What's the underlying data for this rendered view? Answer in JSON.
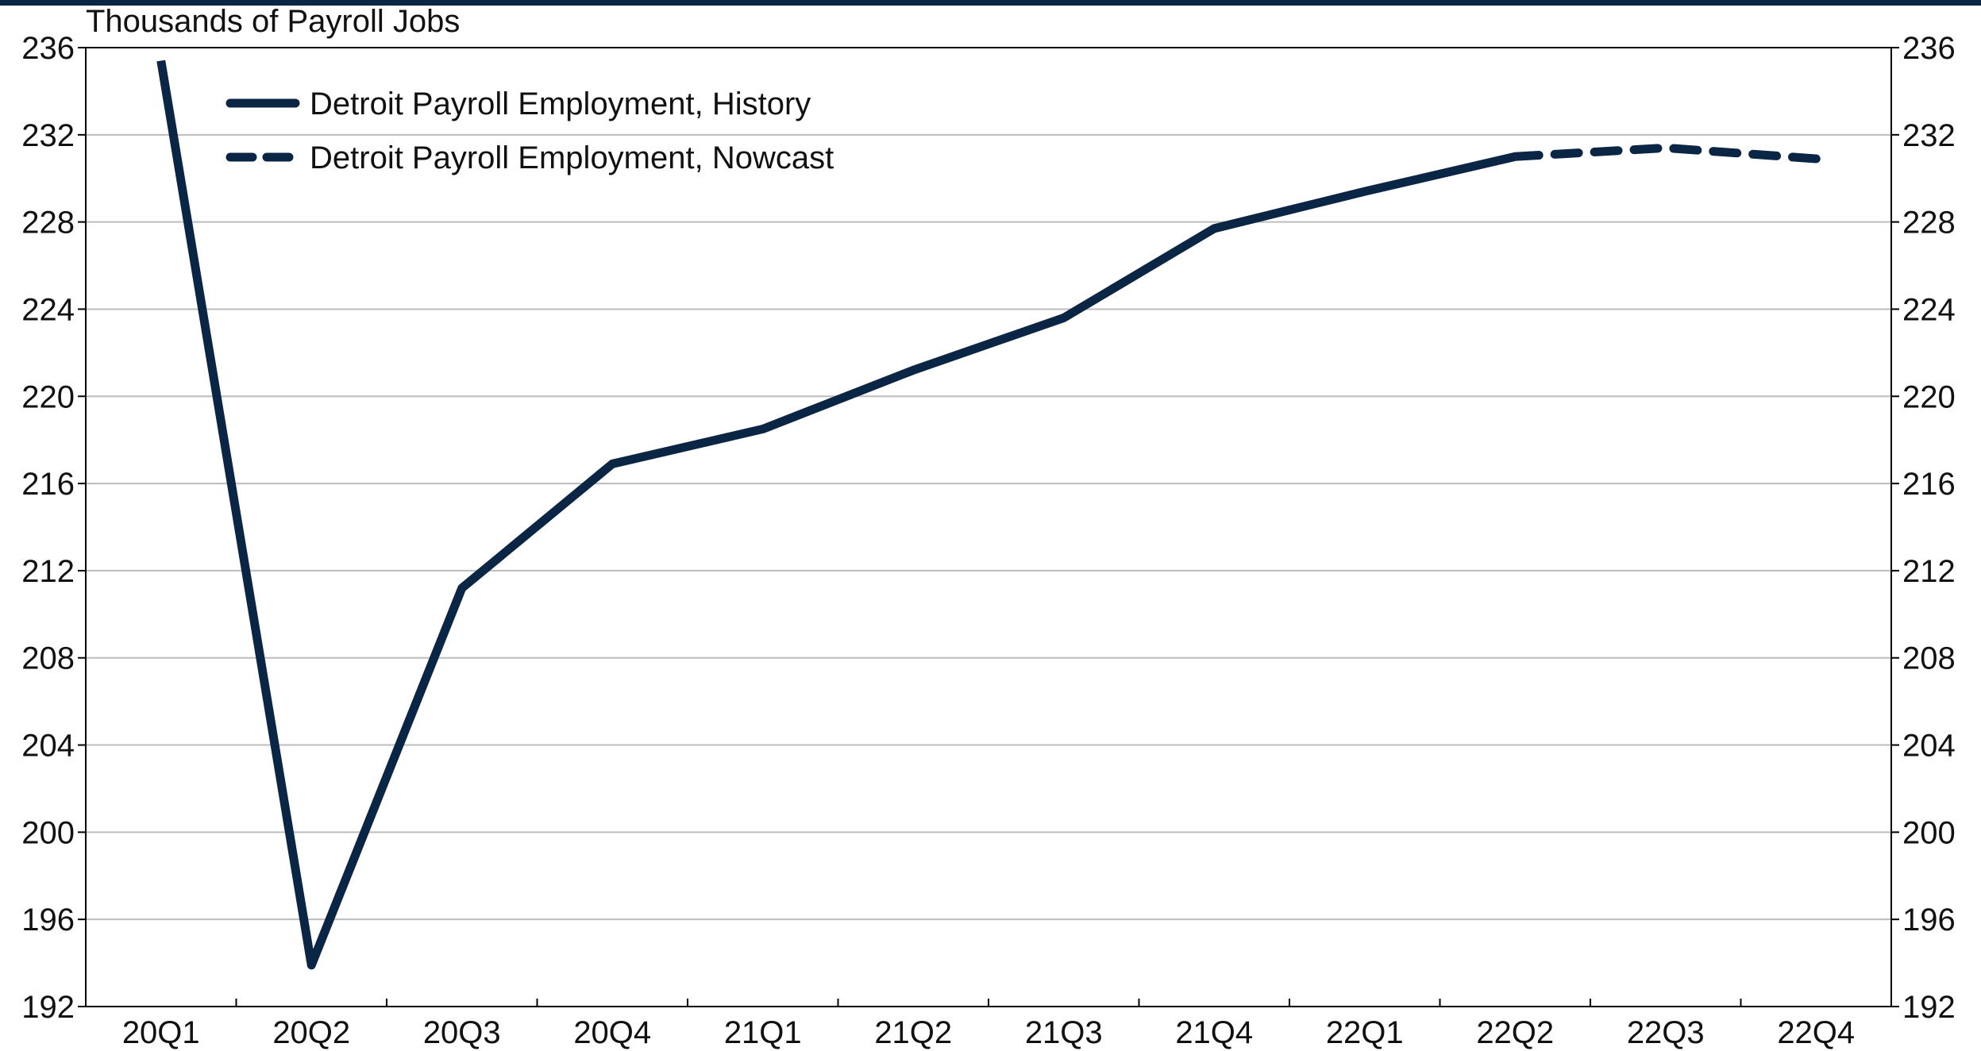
{
  "chart_data": {
    "type": "line",
    "title": "",
    "ylabel": "Thousands of Payroll Jobs",
    "xlabel": "",
    "categories": [
      "20Q1",
      "20Q2",
      "20Q3",
      "20Q4",
      "21Q1",
      "21Q2",
      "21Q3",
      "21Q4",
      "22Q1",
      "22Q2",
      "22Q3",
      "22Q4"
    ],
    "ylim": [
      192,
      236
    ],
    "yticks": [
      192,
      196,
      200,
      204,
      208,
      212,
      216,
      220,
      224,
      228,
      232,
      236
    ],
    "grid": true,
    "legend_position": "top-left",
    "series": [
      {
        "name": "Detroit Payroll Employment, History",
        "style": "solid",
        "color": "#0b2545",
        "x": [
          "20Q1",
          "20Q2",
          "20Q3",
          "20Q4",
          "21Q1",
          "21Q2",
          "21Q3",
          "21Q4",
          "22Q1",
          "22Q2"
        ],
        "values": [
          235.4,
          193.9,
          211.2,
          216.9,
          218.5,
          221.2,
          223.6,
          227.7,
          229.4,
          231.0
        ]
      },
      {
        "name": "Detroit Payroll Employment, Nowcast",
        "style": "dashed",
        "color": "#0b2545",
        "x": [
          "22Q2",
          "22Q3",
          "22Q4"
        ],
        "values": [
          231.0,
          231.4,
          230.9
        ]
      }
    ]
  }
}
